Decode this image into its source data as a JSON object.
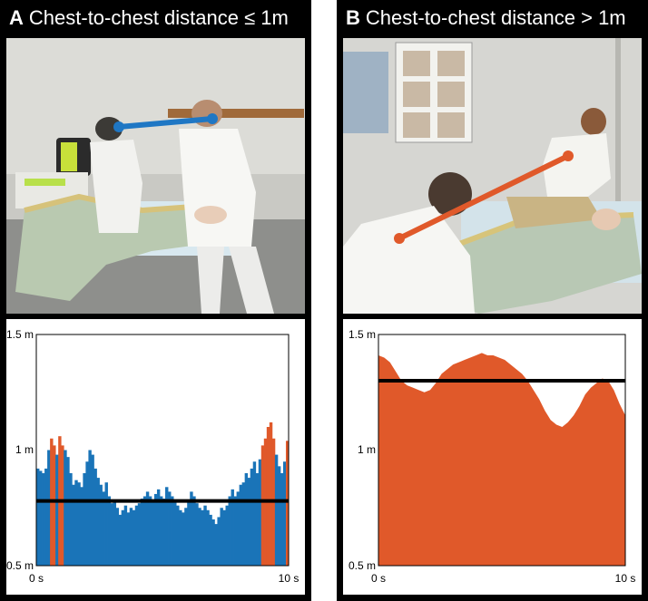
{
  "panels": [
    {
      "letter": "A",
      "title": "Chest-to-chest distance ≤ 1m",
      "photo": {
        "connector_color": "#1f77c4"
      }
    },
    {
      "letter": "B",
      "title": "Chest-to-chest distance > 1m",
      "photo": {
        "connector_color": "#e0592a"
      }
    }
  ],
  "chart_data": [
    {
      "type": "bar",
      "title": "",
      "xlabel": "",
      "ylabel": "",
      "x_ticks": [
        "0 s",
        "10 s"
      ],
      "y_ticks": [
        {
          "value": 1.5,
          "label": "1.5 m"
        },
        {
          "value": 1.0,
          "label": "1 m"
        },
        {
          "value": 0.5,
          "label": "0.5 m"
        }
      ],
      "xlim": [
        0,
        10
      ],
      "ylim": [
        0.5,
        1.5
      ],
      "threshold_line": 0.78,
      "threshold_color": "#000000",
      "color_below_1m": "#1a74b8",
      "color_above_1m": "#e0592a",
      "values": [
        0.92,
        0.91,
        0.9,
        0.92,
        1.0,
        1.05,
        1.02,
        0.98,
        1.06,
        1.02,
        1.0,
        0.97,
        0.9,
        0.85,
        0.87,
        0.86,
        0.84,
        0.9,
        0.95,
        1.0,
        0.98,
        0.92,
        0.88,
        0.85,
        0.82,
        0.86,
        0.8,
        0.77,
        0.78,
        0.75,
        0.72,
        0.74,
        0.76,
        0.73,
        0.75,
        0.74,
        0.76,
        0.77,
        0.79,
        0.8,
        0.82,
        0.8,
        0.78,
        0.81,
        0.83,
        0.8,
        0.79,
        0.84,
        0.82,
        0.8,
        0.78,
        0.76,
        0.74,
        0.73,
        0.75,
        0.78,
        0.82,
        0.8,
        0.77,
        0.75,
        0.74,
        0.76,
        0.74,
        0.72,
        0.7,
        0.68,
        0.71,
        0.75,
        0.74,
        0.76,
        0.8,
        0.83,
        0.8,
        0.82,
        0.85,
        0.86,
        0.9,
        0.88,
        0.92,
        0.95,
        0.9,
        0.96,
        1.02,
        1.05,
        1.1,
        1.12,
        1.05,
        0.98,
        0.93,
        0.9,
        0.95,
        1.04
      ]
    },
    {
      "type": "area",
      "title": "",
      "xlabel": "",
      "ylabel": "",
      "x_ticks": [
        "0 s",
        "10 s"
      ],
      "y_ticks": [
        {
          "value": 1.5,
          "label": "1.5 m"
        },
        {
          "value": 1.0,
          "label": "1 m"
        },
        {
          "value": 0.5,
          "label": "0.5 m"
        }
      ],
      "xlim": [
        0,
        10
      ],
      "ylim": [
        0.5,
        1.5
      ],
      "threshold_line": 1.3,
      "threshold_color": "#000000",
      "fill_color": "#e0592a",
      "values": [
        1.41,
        1.4,
        1.38,
        1.34,
        1.3,
        1.28,
        1.27,
        1.26,
        1.25,
        1.26,
        1.29,
        1.33,
        1.35,
        1.37,
        1.38,
        1.39,
        1.4,
        1.41,
        1.42,
        1.41,
        1.41,
        1.4,
        1.39,
        1.37,
        1.35,
        1.33,
        1.3,
        1.26,
        1.22,
        1.17,
        1.13,
        1.11,
        1.1,
        1.12,
        1.15,
        1.19,
        1.24,
        1.27,
        1.29,
        1.31,
        1.3,
        1.26,
        1.2,
        1.15
      ]
    }
  ]
}
